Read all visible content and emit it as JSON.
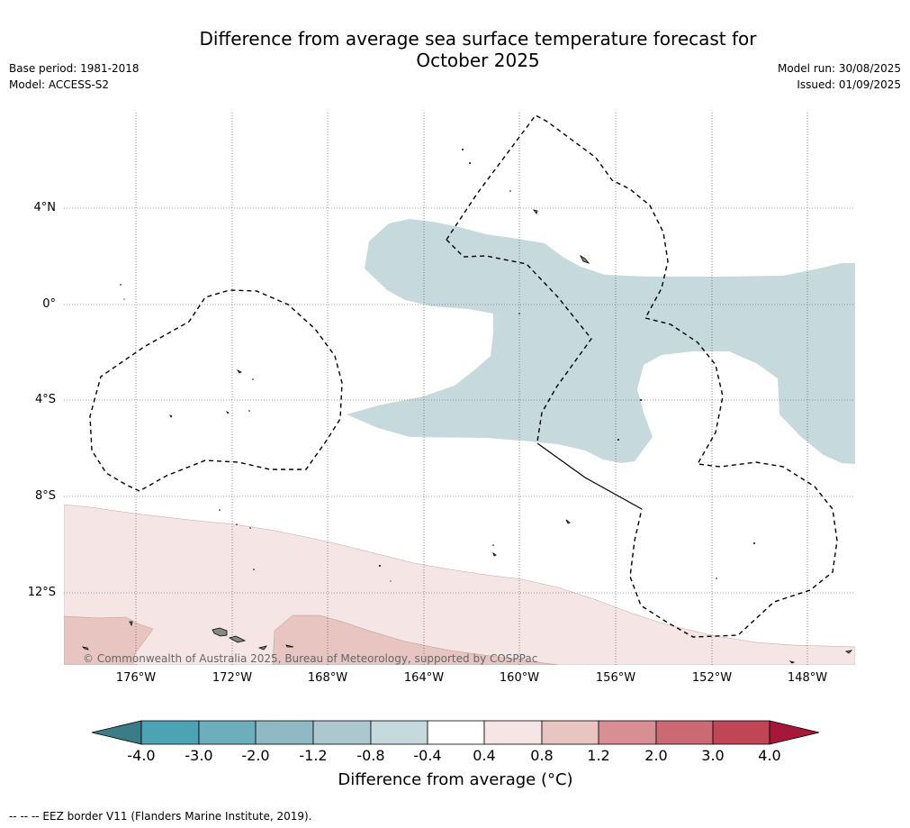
{
  "title_line1": "Difference from average sea surface temperature forecast for",
  "title_line2": "October 2025",
  "meta_left": {
    "base_period": "Base period: 1981-2018",
    "model": "Model: ACCESS-S2"
  },
  "meta_right": {
    "model_run": "Model run: 30/08/2025",
    "issued": "Issued: 01/09/2025"
  },
  "lat_labels": [
    "4°N",
    "0°",
    "4°S",
    "8°S",
    "12°S"
  ],
  "lon_labels": [
    "176°W",
    "172°W",
    "168°W",
    "164°W",
    "160°W",
    "156°W",
    "152°W",
    "148°W"
  ],
  "copyright": "© Commonwealth of Australia 2025, Bureau of Meteorology, supported by COSPPac",
  "colorbar": {
    "title": "Difference from average (°C)",
    "ticks": [
      "-4.0",
      "-3.0",
      "-2.0",
      "-1.2",
      "-0.8",
      "-0.4",
      "0.4",
      "0.8",
      "1.2",
      "2.0",
      "3.0",
      "4.0"
    ],
    "colors": [
      "#4ba3b4",
      "#6daebd",
      "#8fbac5",
      "#adc7ce",
      "#c6d9dc",
      "#ffffff",
      "#f5e6e5",
      "#e8c5c1",
      "#d78f95",
      "#cb6a75",
      "#c04656"
    ],
    "under_color": "#3a7d86",
    "over_color": "#a6183a"
  },
  "footnote": "--  --  -- EEZ border V11 (Flanders Marine Institute, 2019)."
}
